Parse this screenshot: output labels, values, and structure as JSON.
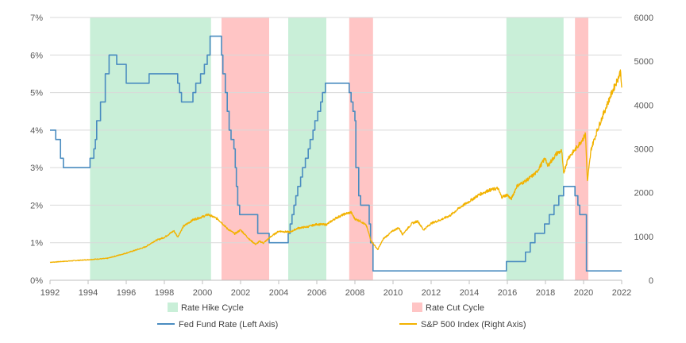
{
  "chart_data": {
    "type": "line",
    "x_range": [
      1992,
      2022
    ],
    "x_ticks": [
      "1992",
      "1994",
      "1996",
      "1998",
      "2000",
      "2002",
      "2004",
      "2006",
      "2008",
      "2010",
      "2012",
      "2014",
      "2016",
      "2018",
      "2020",
      "2022"
    ],
    "y_left": {
      "range": [
        0,
        7
      ],
      "ticks": [
        "0%",
        "1%",
        "2%",
        "3%",
        "4%",
        "5%",
        "6%",
        "7%"
      ]
    },
    "y_right": {
      "range": [
        0,
        6000
      ],
      "ticks": [
        "0",
        "1000",
        "2000",
        "3000",
        "4000",
        "5000",
        "6000"
      ]
    },
    "grid": "horizontal",
    "legend_position": "bottom",
    "colors": {
      "hike": "#c9efd8",
      "cut": "#ffc5c5",
      "fed": "#4a8cc0",
      "sp500": "#f2b200",
      "grid": "#d9d9d9",
      "axis": "#bfbfbf"
    },
    "cycles": [
      {
        "type": "hike",
        "start": 1994.1,
        "end": 2000.45
      },
      {
        "type": "cut",
        "start": 2001.0,
        "end": 2003.5
      },
      {
        "type": "hike",
        "start": 2004.5,
        "end": 2006.5
      },
      {
        "type": "cut",
        "start": 2007.7,
        "end": 2008.95
      },
      {
        "type": "hike",
        "start": 2015.95,
        "end": 2018.95
      },
      {
        "type": "cut",
        "start": 2019.55,
        "end": 2020.25
      }
    ],
    "series": [
      {
        "name": "Fed Fund Rate (Left Axis)",
        "axis": "left",
        "style": "step",
        "points": [
          [
            1992.0,
            4.0
          ],
          [
            1992.3,
            3.75
          ],
          [
            1992.55,
            3.25
          ],
          [
            1992.7,
            3.0
          ],
          [
            1994.1,
            3.25
          ],
          [
            1994.3,
            3.5
          ],
          [
            1994.38,
            3.75
          ],
          [
            1994.45,
            4.25
          ],
          [
            1994.65,
            4.75
          ],
          [
            1994.9,
            5.5
          ],
          [
            1995.1,
            6.0
          ],
          [
            1995.5,
            5.75
          ],
          [
            1996.0,
            5.25
          ],
          [
            1997.2,
            5.5
          ],
          [
            1998.7,
            5.25
          ],
          [
            1998.8,
            5.0
          ],
          [
            1998.9,
            4.75
          ],
          [
            1999.5,
            5.0
          ],
          [
            1999.65,
            5.25
          ],
          [
            1999.9,
            5.5
          ],
          [
            2000.1,
            5.75
          ],
          [
            2000.25,
            6.0
          ],
          [
            2000.4,
            6.5
          ],
          [
            2001.0,
            6.0
          ],
          [
            2001.07,
            5.5
          ],
          [
            2001.2,
            5.0
          ],
          [
            2001.3,
            4.5
          ],
          [
            2001.4,
            4.0
          ],
          [
            2001.5,
            3.75
          ],
          [
            2001.65,
            3.5
          ],
          [
            2001.72,
            3.0
          ],
          [
            2001.78,
            2.5
          ],
          [
            2001.85,
            2.0
          ],
          [
            2001.95,
            1.75
          ],
          [
            2002.9,
            1.25
          ],
          [
            2003.5,
            1.0
          ],
          [
            2004.5,
            1.25
          ],
          [
            2004.6,
            1.5
          ],
          [
            2004.7,
            1.75
          ],
          [
            2004.8,
            2.0
          ],
          [
            2004.9,
            2.25
          ],
          [
            2005.0,
            2.5
          ],
          [
            2005.15,
            2.75
          ],
          [
            2005.25,
            3.0
          ],
          [
            2005.4,
            3.25
          ],
          [
            2005.55,
            3.5
          ],
          [
            2005.65,
            3.75
          ],
          [
            2005.8,
            4.0
          ],
          [
            2005.9,
            4.25
          ],
          [
            2006.05,
            4.5
          ],
          [
            2006.2,
            4.75
          ],
          [
            2006.3,
            5.0
          ],
          [
            2006.45,
            5.25
          ],
          [
            2007.7,
            5.0
          ],
          [
            2007.8,
            4.75
          ],
          [
            2007.9,
            4.5
          ],
          [
            2008.0,
            4.25
          ],
          [
            2008.05,
            3.0
          ],
          [
            2008.2,
            2.25
          ],
          [
            2008.3,
            2.0
          ],
          [
            2008.75,
            1.5
          ],
          [
            2008.82,
            1.0
          ],
          [
            2008.95,
            0.25
          ],
          [
            2015.95,
            0.5
          ],
          [
            2016.95,
            0.75
          ],
          [
            2017.2,
            1.0
          ],
          [
            2017.45,
            1.25
          ],
          [
            2017.95,
            1.5
          ],
          [
            2018.2,
            1.75
          ],
          [
            2018.45,
            2.0
          ],
          [
            2018.7,
            2.25
          ],
          [
            2018.95,
            2.5
          ],
          [
            2019.55,
            2.25
          ],
          [
            2019.7,
            2.0
          ],
          [
            2019.8,
            1.75
          ],
          [
            2020.15,
            0.25
          ],
          [
            2022.0,
            0.25
          ]
        ]
      },
      {
        "name": "S&P 500 Index (Right Axis)",
        "axis": "right",
        "style": "line",
        "points": [
          [
            1992.0,
            410
          ],
          [
            1993.0,
            440
          ],
          [
            1994.0,
            470
          ],
          [
            1995.0,
            500
          ],
          [
            1996.0,
            620
          ],
          [
            1997.0,
            760
          ],
          [
            1997.5,
            900
          ],
          [
            1998.0,
            980
          ],
          [
            1998.5,
            1130
          ],
          [
            1998.7,
            990
          ],
          [
            1999.0,
            1230
          ],
          [
            1999.5,
            1380
          ],
          [
            2000.0,
            1450
          ],
          [
            2000.3,
            1500
          ],
          [
            2000.6,
            1440
          ],
          [
            2000.8,
            1400
          ],
          [
            2001.0,
            1320
          ],
          [
            2001.3,
            1180
          ],
          [
            2001.7,
            1060
          ],
          [
            2002.0,
            1150
          ],
          [
            2002.5,
            920
          ],
          [
            2002.8,
            820
          ],
          [
            2003.0,
            890
          ],
          [
            2003.2,
            850
          ],
          [
            2003.6,
            1000
          ],
          [
            2004.0,
            1120
          ],
          [
            2004.6,
            1100
          ],
          [
            2005.0,
            1190
          ],
          [
            2005.5,
            1220
          ],
          [
            2006.0,
            1280
          ],
          [
            2006.5,
            1270
          ],
          [
            2007.0,
            1420
          ],
          [
            2007.5,
            1520
          ],
          [
            2007.8,
            1550
          ],
          [
            2008.0,
            1400
          ],
          [
            2008.3,
            1350
          ],
          [
            2008.6,
            1250
          ],
          [
            2008.85,
            900
          ],
          [
            2009.2,
            700
          ],
          [
            2009.5,
            950
          ],
          [
            2010.0,
            1130
          ],
          [
            2010.3,
            1200
          ],
          [
            2010.5,
            1050
          ],
          [
            2011.0,
            1300
          ],
          [
            2011.3,
            1350
          ],
          [
            2011.6,
            1150
          ],
          [
            2012.0,
            1300
          ],
          [
            2012.5,
            1380
          ],
          [
            2013.0,
            1480
          ],
          [
            2013.5,
            1660
          ],
          [
            2014.0,
            1800
          ],
          [
            2014.5,
            1950
          ],
          [
            2015.0,
            2050
          ],
          [
            2015.5,
            2100
          ],
          [
            2015.7,
            1900
          ],
          [
            2016.0,
            1950
          ],
          [
            2016.2,
            1850
          ],
          [
            2016.5,
            2150
          ],
          [
            2017.0,
            2280
          ],
          [
            2017.5,
            2450
          ],
          [
            2018.0,
            2800
          ],
          [
            2018.1,
            2600
          ],
          [
            2018.6,
            2900
          ],
          [
            2018.85,
            2950
          ],
          [
            2018.95,
            2450
          ],
          [
            2019.2,
            2800
          ],
          [
            2019.5,
            2950
          ],
          [
            2020.0,
            3250
          ],
          [
            2020.1,
            3350
          ],
          [
            2020.2,
            2250
          ],
          [
            2020.4,
            3000
          ],
          [
            2020.7,
            3400
          ],
          [
            2021.0,
            3750
          ],
          [
            2021.5,
            4300
          ],
          [
            2021.8,
            4600
          ],
          [
            2021.95,
            4780
          ],
          [
            2022.0,
            4400
          ]
        ]
      }
    ],
    "legend": [
      {
        "key": "hike",
        "label": "Rate Hike Cycle"
      },
      {
        "key": "cut",
        "label": "Rate Cut Cycle"
      },
      {
        "key": "fed",
        "label": "Fed Fund Rate (Left Axis)"
      },
      {
        "key": "sp500",
        "label": "S&P 500 Index (Right Axis)"
      }
    ]
  }
}
